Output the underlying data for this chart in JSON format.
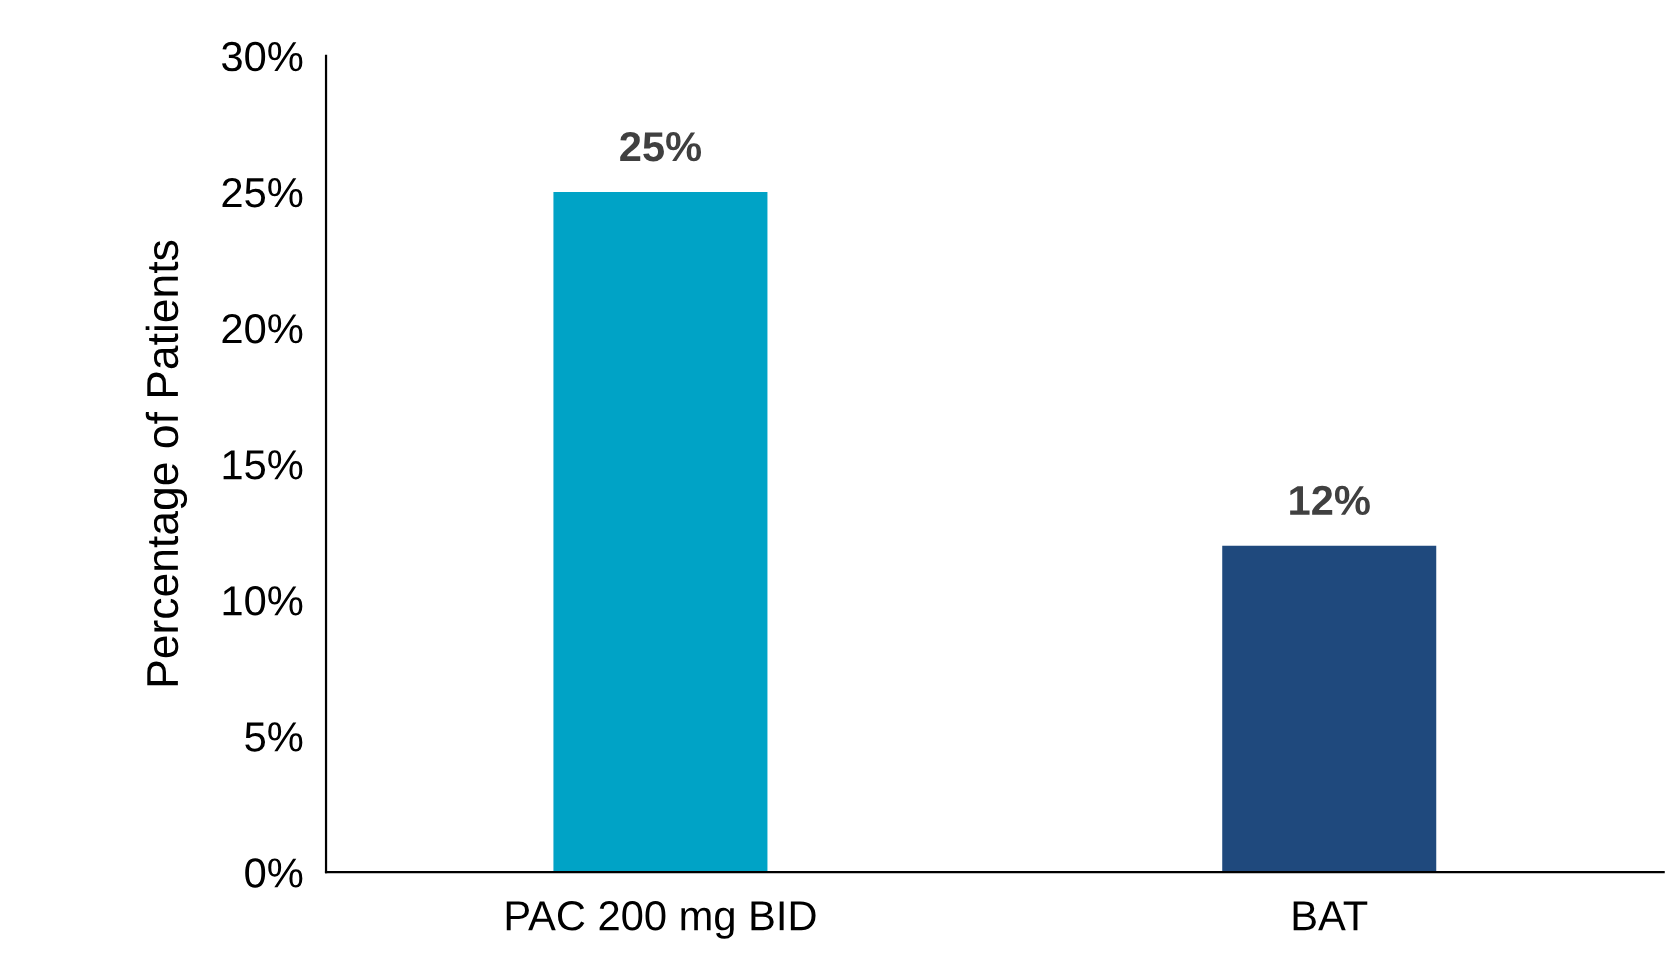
{
  "chart_data": {
    "type": "bar",
    "ylabel": "Percentage of Patients",
    "categories": [
      "PAC 200 mg BID",
      "BAT"
    ],
    "values": [
      25,
      12
    ],
    "colors": [
      "#00a3c6",
      "#1f497d"
    ],
    "value_labels": [
      "25%",
      "12%"
    ],
    "ylim": [
      0,
      30
    ],
    "yticks": [
      {
        "value": 0,
        "label": "0%"
      },
      {
        "value": 5,
        "label": "5%"
      },
      {
        "value": 10,
        "label": "10%"
      },
      {
        "value": 15,
        "label": "15%"
      },
      {
        "value": 20,
        "label": "20%"
      },
      {
        "value": 25,
        "label": "25%"
      },
      {
        "value": 30,
        "label": "30%"
      }
    ],
    "grid": false,
    "legend": false
  }
}
